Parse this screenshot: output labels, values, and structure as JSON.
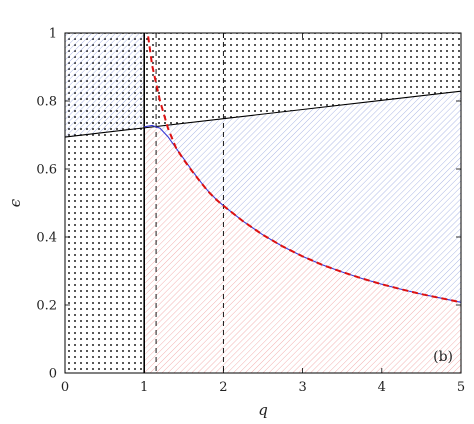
{
  "chart_data": {
    "type": "line",
    "title": "",
    "panel_label": "(b)",
    "xlabel": "q",
    "ylabel": "ϵ",
    "xlim": [
      0,
      5
    ],
    "ylim": [
      0,
      1
    ],
    "xticks": [
      "0",
      "1",
      "2",
      "3",
      "4",
      "5"
    ],
    "yticks": [
      "0",
      "0.2",
      "0.4",
      "0.6",
      "0.8",
      "1"
    ],
    "grid": false,
    "legend": "none",
    "colors": {
      "upper_line": "#000000",
      "lower_curve": "#3a3ad6",
      "dashed_curve": "#dd1111",
      "region_upper_hatch": "#9aa8e0",
      "region_lower_hatch": "#f0a0a0",
      "dots": "#111111"
    },
    "vertical_lines": [
      {
        "x": 1.0,
        "style": "solid"
      },
      {
        "x": 1.15,
        "style": "dashed"
      },
      {
        "x": 2.0,
        "style": "dashed"
      }
    ],
    "series": [
      {
        "style": "solid",
        "color": "#000000",
        "x": [
          0,
          1,
          2,
          3,
          4,
          5
        ],
        "y": [
          0.694,
          0.721,
          0.748,
          0.775,
          0.802,
          0.829
        ]
      },
      {
        "style": "solid",
        "color": "#3a3ad6",
        "x": [
          1.0,
          1.1,
          1.2,
          1.3,
          1.4,
          1.5,
          1.6,
          1.7,
          1.8,
          1.9,
          2.0,
          2.25,
          2.5,
          2.75,
          3.0,
          3.25,
          3.5,
          3.75,
          4.0,
          4.25,
          4.5,
          4.75,
          5.0
        ],
        "y": [
          0.724,
          0.728,
          0.72,
          0.695,
          0.662,
          0.63,
          0.597,
          0.566,
          0.537,
          0.513,
          0.492,
          0.446,
          0.406,
          0.372,
          0.343,
          0.318,
          0.297,
          0.278,
          0.261,
          0.246,
          0.232,
          0.22,
          0.208
        ]
      },
      {
        "style": "dashed",
        "color": "#dd1111",
        "x": [
          1.05,
          1.1,
          1.2,
          1.3,
          1.4,
          1.5,
          1.6,
          1.7,
          1.8,
          1.9,
          2.0,
          2.25,
          2.5,
          2.75,
          3.0,
          3.25,
          3.5,
          3.75,
          4.0,
          4.25,
          4.5,
          4.75,
          5.0
        ],
        "y": [
          0.99,
          0.905,
          0.8,
          0.72,
          0.663,
          0.627,
          0.595,
          0.565,
          0.536,
          0.512,
          0.492,
          0.446,
          0.406,
          0.372,
          0.343,
          0.318,
          0.297,
          0.278,
          0.261,
          0.246,
          0.232,
          0.22,
          0.208
        ]
      }
    ]
  }
}
